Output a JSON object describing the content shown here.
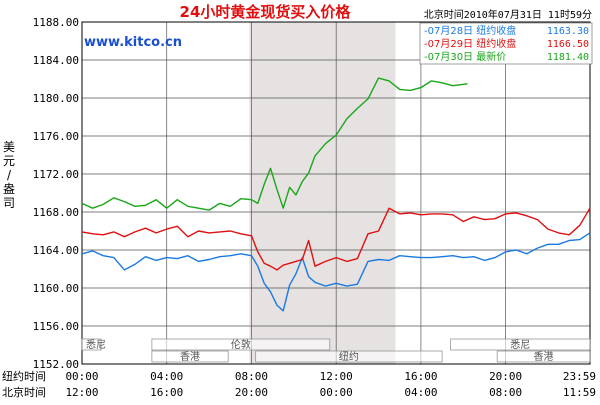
{
  "chart_data": {
    "type": "line",
    "title": "24小时黄金现货买入价格",
    "timestamp": "北京时间2010年07月31日 11时59分",
    "source": "www.kitco.cn",
    "ylabel": "美元/盎司",
    "ylim": [
      1152,
      1188
    ],
    "yticks": [
      "1188.00",
      "1184.00",
      "1180.00",
      "1176.00",
      "1172.00",
      "1168.00",
      "1164.00",
      "1160.00",
      "1156.00",
      "1152.00"
    ],
    "x_rows": [
      {
        "label": "纽约时间",
        "ticks": [
          "00:00",
          "04:00",
          "08:00",
          "12:00",
          "16:00",
          "20:00",
          "23:59"
        ]
      },
      {
        "label": "北京时间",
        "ticks": [
          "12:00",
          "16:00",
          "20:00",
          "00:00",
          "04:00",
          "08:00",
          "11:59"
        ]
      }
    ],
    "x_hours": [
      0,
      4,
      8,
      12,
      16,
      20,
      23.983
    ],
    "highlight_hours": [
      7.9,
      14.8
    ],
    "markets": [
      {
        "name": "悉尼",
        "start": 0,
        "end": 0.9,
        "row": 1
      },
      {
        "name": "香港",
        "start": 3.3,
        "end": 6.9,
        "row": 2
      },
      {
        "name": "伦敦",
        "start": 3.3,
        "end": 11.7,
        "row": 1
      },
      {
        "name": "纽约",
        "start": 8.2,
        "end": 17.0,
        "row": 2
      },
      {
        "name": "悉尼",
        "start": 17.4,
        "end": 23.98,
        "row": 1
      },
      {
        "name": "香港",
        "start": 19.6,
        "end": 23.98,
        "row": 2
      }
    ],
    "legend": [
      {
        "label": "-07月28日  纽约收盘",
        "value": "1163.30",
        "color": "#1a7ae0"
      },
      {
        "label": "-07月29日  纽约收盘",
        "value": "1166.50",
        "color": "#e01010"
      },
      {
        "label": "-07月30日    最新价",
        "value": "1181.40",
        "color": "#1aa61a"
      }
    ],
    "series": [
      {
        "name": "07月28日",
        "color": "#1a7ae0",
        "x": [
          0,
          0.5,
          1,
          1.5,
          2,
          2.5,
          3,
          3.5,
          4,
          4.5,
          5,
          5.5,
          6,
          6.5,
          7,
          7.5,
          8,
          8.3,
          8.6,
          8.9,
          9.2,
          9.5,
          9.8,
          10.1,
          10.4,
          10.7,
          11,
          11.5,
          12,
          12.5,
          13,
          13.5,
          14,
          14.5,
          15,
          15.5,
          16,
          16.5,
          17,
          17.5,
          18,
          18.5,
          19,
          19.5,
          20,
          20.5,
          21,
          21.5,
          22,
          22.5,
          23,
          23.5,
          23.98
        ],
        "values": [
          1163.6,
          1163.9,
          1163.4,
          1163.2,
          1161.9,
          1162.5,
          1163.3,
          1162.9,
          1163.2,
          1163.1,
          1163.4,
          1162.8,
          1163.0,
          1163.3,
          1163.4,
          1163.6,
          1163.4,
          1162.3,
          1160.5,
          1159.6,
          1158.2,
          1157.6,
          1160.3,
          1161.5,
          1163.2,
          1161.2,
          1160.6,
          1160.2,
          1160.5,
          1160.2,
          1160.4,
          1162.8,
          1163.0,
          1162.9,
          1163.4,
          1163.3,
          1163.2,
          1163.2,
          1163.3,
          1163.4,
          1163.2,
          1163.3,
          1162.9,
          1163.2,
          1163.8,
          1164.0,
          1163.6,
          1164.2,
          1164.6,
          1164.6,
          1165.0,
          1165.1,
          1165.8
        ]
      },
      {
        "name": "07月29日",
        "color": "#e01010",
        "x": [
          0,
          0.5,
          1,
          1.5,
          2,
          2.5,
          3,
          3.5,
          4,
          4.5,
          5,
          5.5,
          6,
          6.5,
          7,
          7.5,
          8,
          8.3,
          8.6,
          8.9,
          9.2,
          9.5,
          9.8,
          10.1,
          10.4,
          10.7,
          11,
          11.5,
          12,
          12.5,
          13,
          13.5,
          14,
          14.5,
          15,
          15.5,
          16,
          16.5,
          17,
          17.5,
          18,
          18.5,
          19,
          19.5,
          20,
          20.5,
          21,
          21.5,
          22,
          22.5,
          23,
          23.5,
          23.98
        ],
        "values": [
          1165.9,
          1165.7,
          1165.6,
          1165.9,
          1165.4,
          1165.9,
          1166.3,
          1165.8,
          1166.2,
          1166.5,
          1165.4,
          1166.0,
          1165.8,
          1165.9,
          1166.0,
          1165.7,
          1165.5,
          1163.8,
          1162.6,
          1162.3,
          1161.9,
          1162.4,
          1162.6,
          1162.8,
          1163.0,
          1165.0,
          1162.3,
          1162.8,
          1163.2,
          1162.8,
          1163.1,
          1165.7,
          1166.0,
          1168.4,
          1167.8,
          1167.9,
          1167.7,
          1167.8,
          1167.8,
          1167.7,
          1167.0,
          1167.5,
          1167.2,
          1167.3,
          1167.8,
          1167.9,
          1167.6,
          1167.2,
          1166.2,
          1165.8,
          1165.6,
          1166.6,
          1168.4
        ]
      },
      {
        "name": "07月30日",
        "color": "#1aa61a",
        "x": [
          0,
          0.5,
          1,
          1.5,
          2,
          2.5,
          3,
          3.5,
          4,
          4.5,
          5,
          5.5,
          6,
          6.5,
          7,
          7.5,
          8,
          8.3,
          8.6,
          8.9,
          9.2,
          9.5,
          9.8,
          10.1,
          10.4,
          10.7,
          11,
          11.5,
          12,
          12.5,
          13,
          13.5,
          14,
          14.5,
          15,
          15.5,
          16,
          16.5,
          17,
          17.5,
          18.2
        ],
        "values": [
          1168.9,
          1168.4,
          1168.8,
          1169.5,
          1169.1,
          1168.6,
          1168.7,
          1169.3,
          1168.4,
          1169.3,
          1168.6,
          1168.4,
          1168.2,
          1168.9,
          1168.6,
          1169.4,
          1169.3,
          1168.9,
          1170.9,
          1172.6,
          1170.4,
          1168.4,
          1170.6,
          1169.8,
          1171.2,
          1172.1,
          1173.9,
          1175.2,
          1176.1,
          1177.8,
          1178.9,
          1179.9,
          1182.1,
          1181.8,
          1180.9,
          1180.8,
          1181.1,
          1181.8,
          1181.6,
          1181.3,
          1181.5
        ]
      }
    ]
  }
}
